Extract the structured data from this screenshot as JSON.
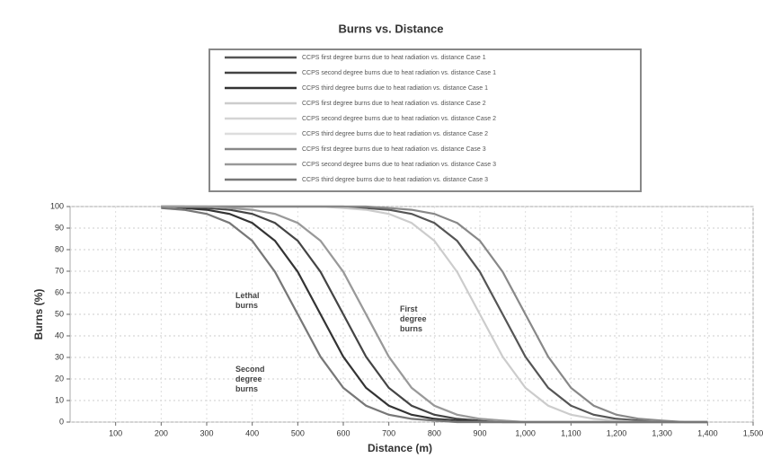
{
  "chart_data": {
    "type": "line",
    "title": "Burns vs. Distance",
    "x_label": "Distance (m)",
    "y_label": "Burns (%)",
    "xlim": [
      0,
      1500
    ],
    "ylim": [
      0,
      100
    ],
    "xticks": [
      100,
      200,
      300,
      400,
      500,
      600,
      700,
      800,
      900,
      {
        "value": 1000,
        "label": "1,000"
      },
      {
        "value": 1100,
        "label": "1,100"
      },
      {
        "value": 1200,
        "label": "1,200"
      },
      {
        "value": 1300,
        "label": "1,300"
      },
      {
        "value": 1400,
        "label": "1,400"
      },
      {
        "value": 1500,
        "label": "1,500"
      }
    ],
    "yticks": [
      0,
      10,
      20,
      30,
      40,
      50,
      60,
      70,
      80,
      90,
      100
    ],
    "grid": true,
    "legend": "top",
    "annotations": [
      "Lethal burns",
      "First degree burns",
      "Second degree burns"
    ],
    "x": [
      200,
      250,
      300,
      350,
      400,
      450,
      500,
      550,
      600,
      650,
      700,
      750,
      800,
      850,
      900,
      950,
      1000,
      1050,
      1100,
      1150,
      1200,
      1250,
      1300,
      1350,
      1400
    ],
    "series": [
      {
        "name": "CCPS first degree burns due to heat radiation vs. distance Case 1",
        "color": "#555555",
        "values": [
          100,
          100,
          100,
          100,
          100,
          100,
          100,
          100,
          100,
          99.3,
          98.5,
          96.6,
          92.4,
          84.1,
          69.7,
          50,
          30.3,
          15.9,
          7.6,
          3.4,
          1.5,
          0.7,
          0,
          0,
          0
        ]
      },
      {
        "name": "CCPS second degree burns due to heat radiation vs. distance Case 1",
        "color": "#444444",
        "values": [
          100,
          100,
          99.3,
          98.5,
          96.6,
          92.4,
          84.1,
          69.7,
          50,
          30.3,
          15.9,
          7.6,
          3.4,
          1.5,
          0.7,
          0,
          0,
          0,
          0,
          0,
          0,
          0,
          0,
          0,
          0
        ]
      },
      {
        "name": "CCPS third degree burns due to heat radiation vs. distance Case 1",
        "color": "#333333",
        "values": [
          100,
          99.3,
          98.5,
          96.6,
          92.4,
          84.1,
          69.7,
          50,
          30.3,
          15.9,
          7.6,
          3.4,
          1.5,
          0.7,
          0,
          0,
          0,
          0,
          0,
          0,
          0,
          0,
          0,
          0,
          0
        ]
      },
      {
        "name": "CCPS first degree burns due to heat radiation vs. distance Case 2",
        "color": "#cccccc",
        "values": [
          100,
          100,
          100,
          100,
          100,
          100,
          100,
          100,
          99.3,
          98.5,
          96.6,
          92.4,
          84.1,
          69.7,
          50,
          30.3,
          15.9,
          7.6,
          3.4,
          1.5,
          0.7,
          0,
          0,
          0,
          0
        ]
      },
      {
        "name": "CCPS second degree burns due to heat radiation vs. distance Case 2",
        "color": "#d4d4d4",
        "values": [
          100,
          100,
          100,
          99.3,
          98.5,
          96.6,
          92.4,
          84.1,
          69.7,
          50,
          30.3,
          15.9,
          7.6,
          3.4,
          1.5,
          0.7,
          0,
          0,
          0,
          0,
          0,
          0,
          0,
          0,
          0
        ]
      },
      {
        "name": "CCPS third degree burns due to heat radiation vs. distance Case 2",
        "color": "#dddddd",
        "values": [
          99.3,
          98.5,
          96.6,
          92.4,
          84.1,
          69.7,
          50,
          30.3,
          15.9,
          7.6,
          3.4,
          1.5,
          0.7,
          0,
          0,
          0,
          0,
          0,
          0,
          0,
          0,
          0,
          0,
          0,
          0
        ]
      },
      {
        "name": "CCPS first degree burns due to heat radiation vs. distance Case 3",
        "color": "#888888",
        "values": [
          100,
          100,
          100,
          100,
          100,
          100,
          100,
          100,
          100,
          100,
          99.3,
          98.5,
          96.6,
          92.4,
          84.1,
          69.7,
          50,
          30.3,
          15.9,
          7.6,
          3.4,
          1.5,
          0.7,
          0,
          0
        ]
      },
      {
        "name": "CCPS second degree burns due to heat radiation vs. distance Case 3",
        "color": "#999999",
        "values": [
          100,
          100,
          100,
          99.3,
          98.5,
          96.6,
          92.4,
          84.1,
          69.7,
          50,
          30.3,
          15.9,
          7.6,
          3.4,
          1.5,
          0.7,
          0,
          0,
          0,
          0,
          0,
          0,
          0,
          0,
          0
        ]
      },
      {
        "name": "CCPS third degree burns due to heat radiation vs. distance Case 3",
        "color": "#777777",
        "values": [
          99.3,
          98.5,
          96.6,
          92.4,
          84.1,
          69.7,
          50,
          30.3,
          15.9,
          7.6,
          3.4,
          1.5,
          0.7,
          0,
          0,
          0,
          0,
          0,
          0,
          0,
          0,
          0,
          0,
          0,
          0
        ]
      }
    ]
  }
}
